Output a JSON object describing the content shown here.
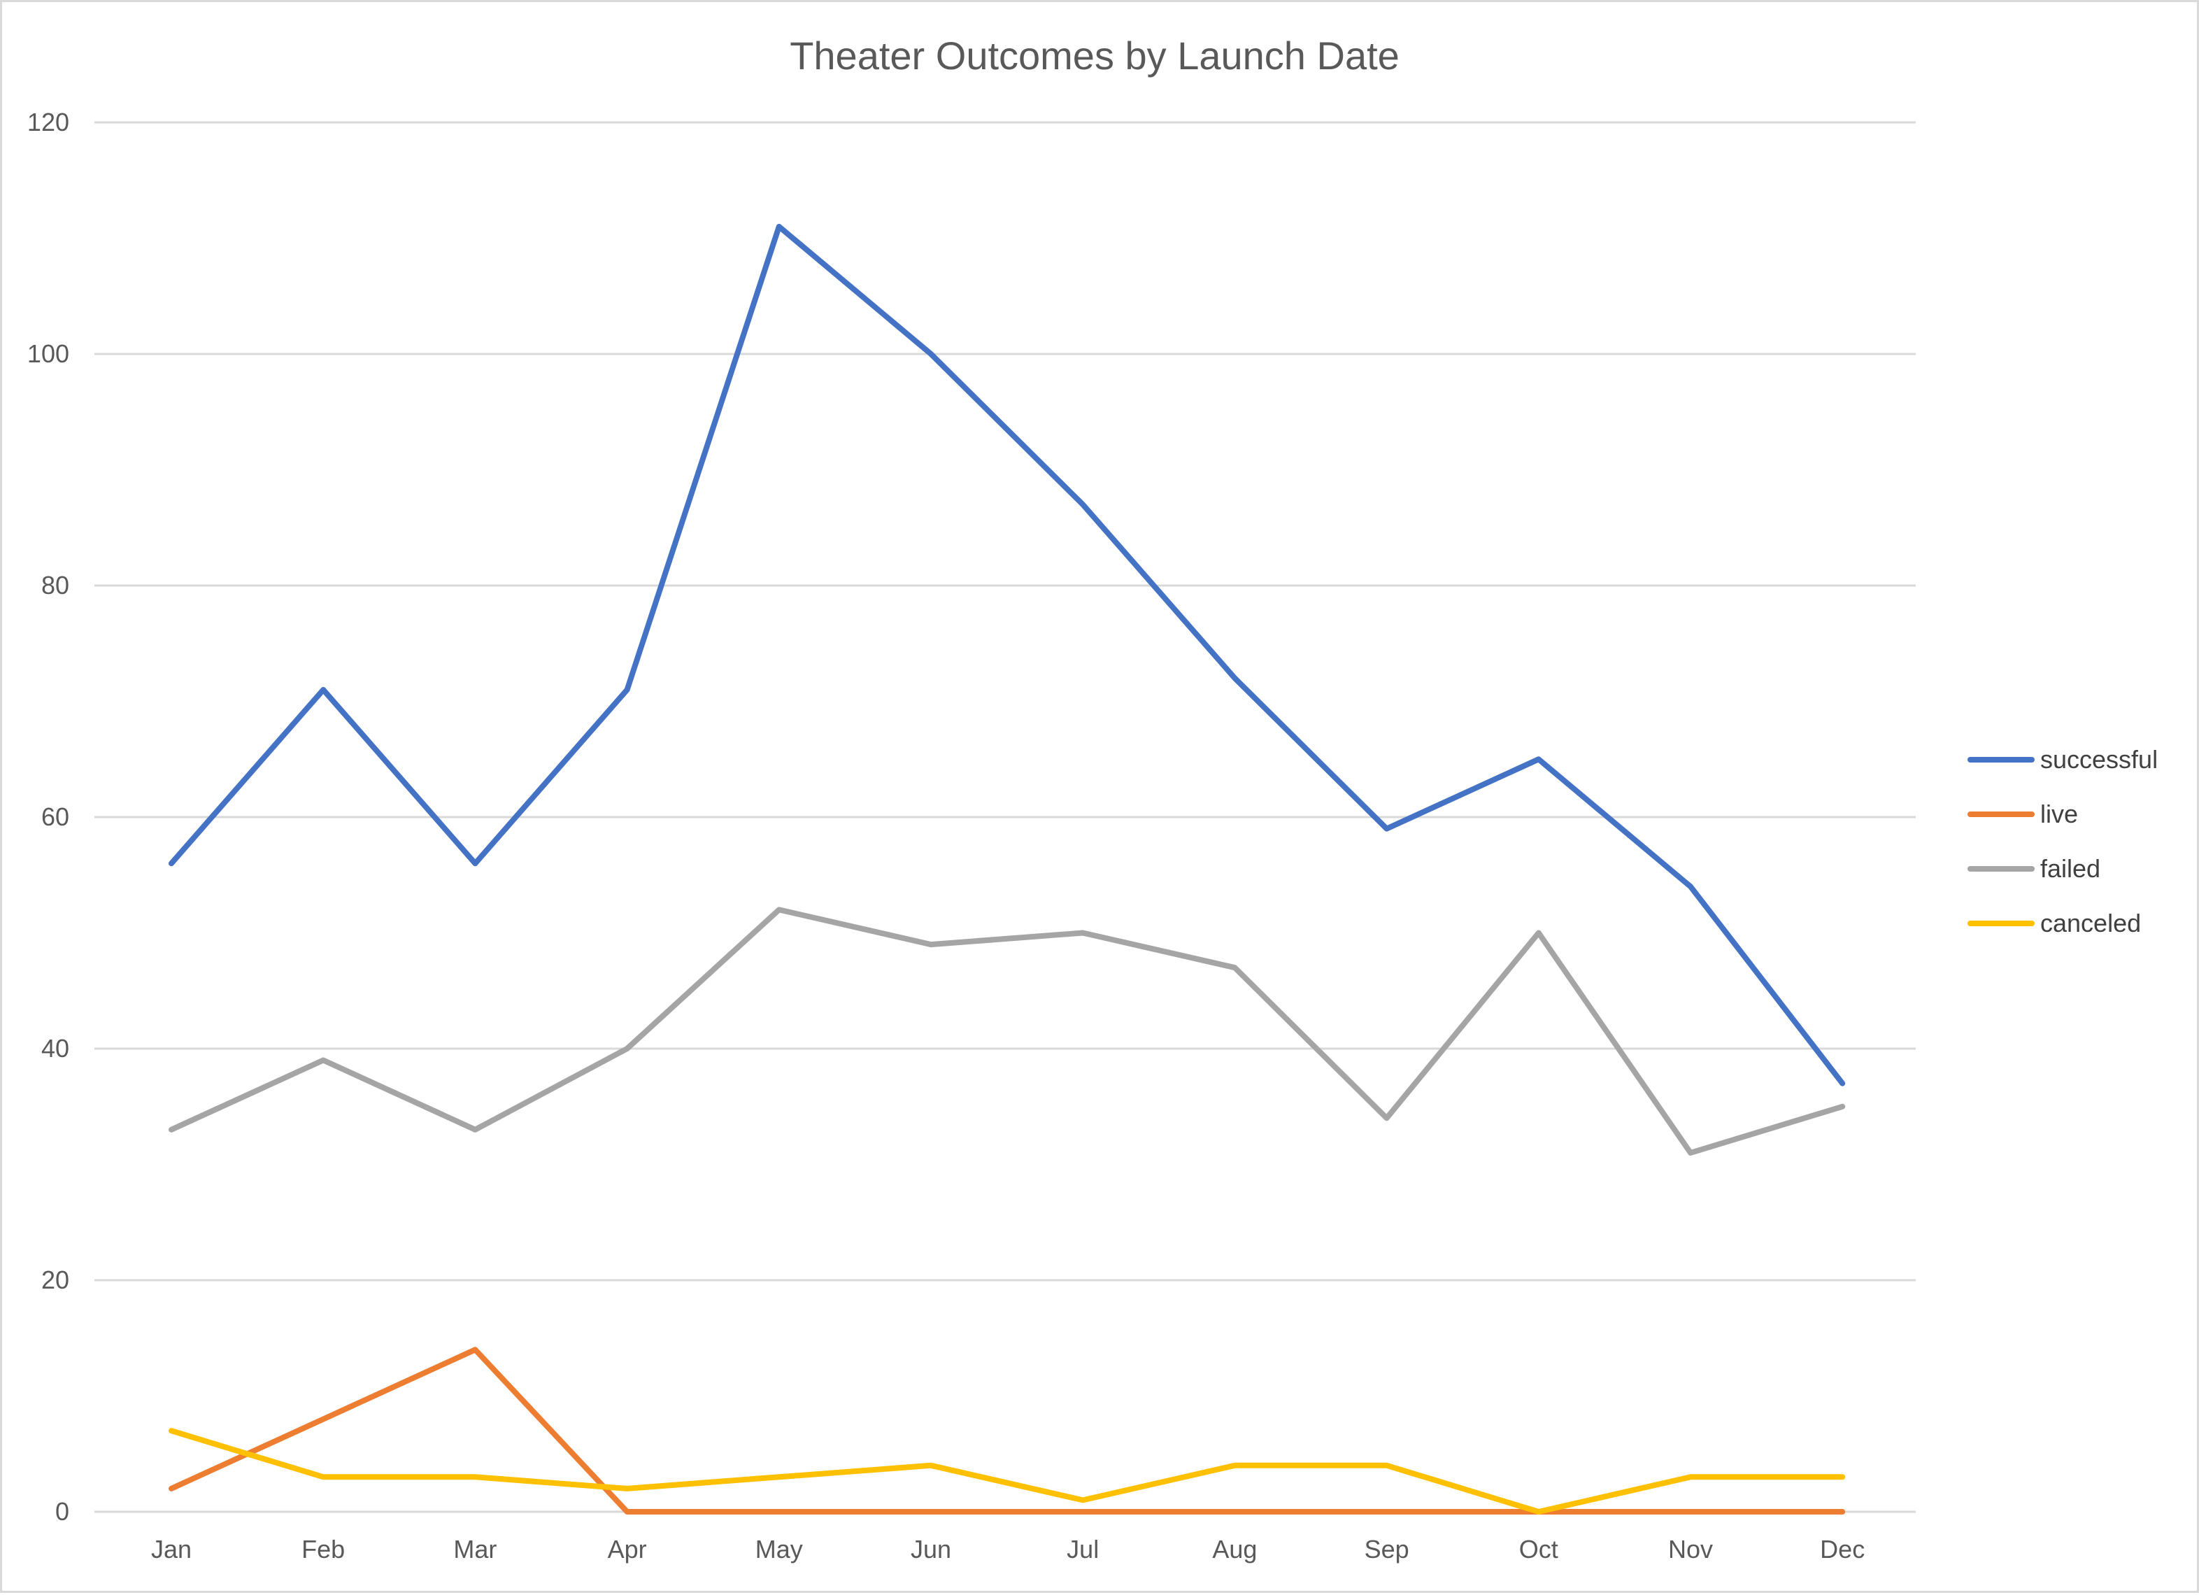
{
  "chart_data": {
    "type": "line",
    "title": "Theater Outcomes by Launch Date",
    "xlabel": "",
    "ylabel": "",
    "categories": [
      "Jan",
      "Feb",
      "Mar",
      "Apr",
      "May",
      "Jun",
      "Jul",
      "Aug",
      "Sep",
      "Oct",
      "Nov",
      "Dec"
    ],
    "ylim": [
      0,
      120
    ],
    "yticks": [
      0,
      20,
      40,
      60,
      80,
      100,
      120
    ],
    "grid": "horizontal",
    "legend_position": "right",
    "series": [
      {
        "name": "successful",
        "color": "#4472c4",
        "values": [
          56,
          71,
          56,
          71,
          111,
          100,
          87,
          72,
          59,
          65,
          54,
          37
        ]
      },
      {
        "name": "live",
        "color": "#ed7d31",
        "values": [
          2,
          8,
          14,
          0,
          0,
          0,
          0,
          0,
          0,
          0,
          0,
          0
        ]
      },
      {
        "name": "failed",
        "color": "#a5a5a5",
        "values": [
          33,
          39,
          33,
          40,
          52,
          49,
          50,
          47,
          34,
          50,
          31,
          35
        ]
      },
      {
        "name": "canceled",
        "color": "#ffc000",
        "values": [
          7,
          3,
          3,
          2,
          3,
          4,
          1,
          4,
          4,
          0,
          3,
          3
        ]
      }
    ]
  }
}
